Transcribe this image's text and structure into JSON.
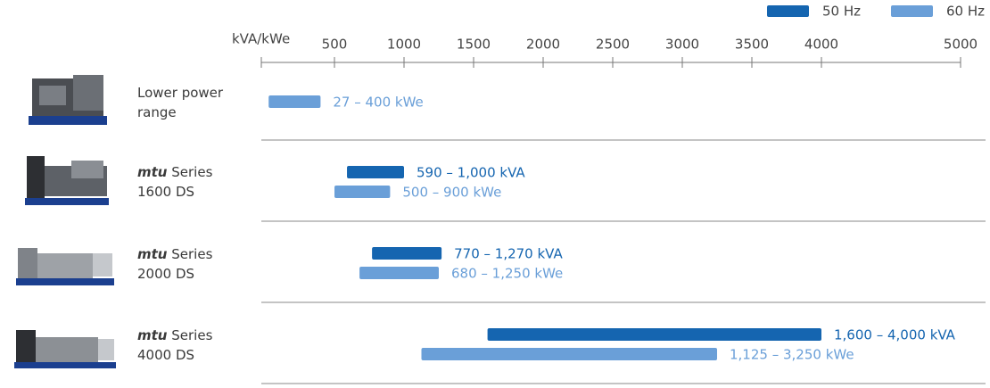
{
  "chart_data": {
    "type": "bar",
    "orientation": "horizontal",
    "axis_label": "kVA/kWe",
    "brand": "mtu",
    "categories": [
      "Lower power range",
      "Series 1600 DS",
      "Series 2000 DS",
      "Series 4000 DS"
    ],
    "branded": [
      false,
      true,
      true,
      true
    ],
    "series": [
      {
        "name": "50 Hz",
        "color": "#1565b0",
        "values": [
          null,
          [
            590,
            1000
          ],
          [
            770,
            1270
          ],
          [
            1600,
            4000
          ]
        ],
        "value_labels": [
          null,
          "590 – 1,000 kVA",
          "770 – 1,270 kVA",
          "1,600 – 4,000 kVA"
        ]
      },
      {
        "name": "60 Hz",
        "color": "#6a9fd8",
        "values": [
          [
            27,
            400
          ],
          [
            500,
            900
          ],
          [
            680,
            1250
          ],
          [
            1125,
            3250
          ]
        ],
        "value_labels": [
          "27 – 400 kWe",
          "500 – 900 kWe",
          "680 – 1,250 kWe",
          "1,125 – 3,250 kWe"
        ]
      }
    ],
    "xlim": [
      0,
      5000
    ],
    "xticks": [
      500,
      1000,
      1500,
      2000,
      2500,
      3000,
      3500,
      4000,
      5000
    ],
    "legend": "top-right"
  }
}
